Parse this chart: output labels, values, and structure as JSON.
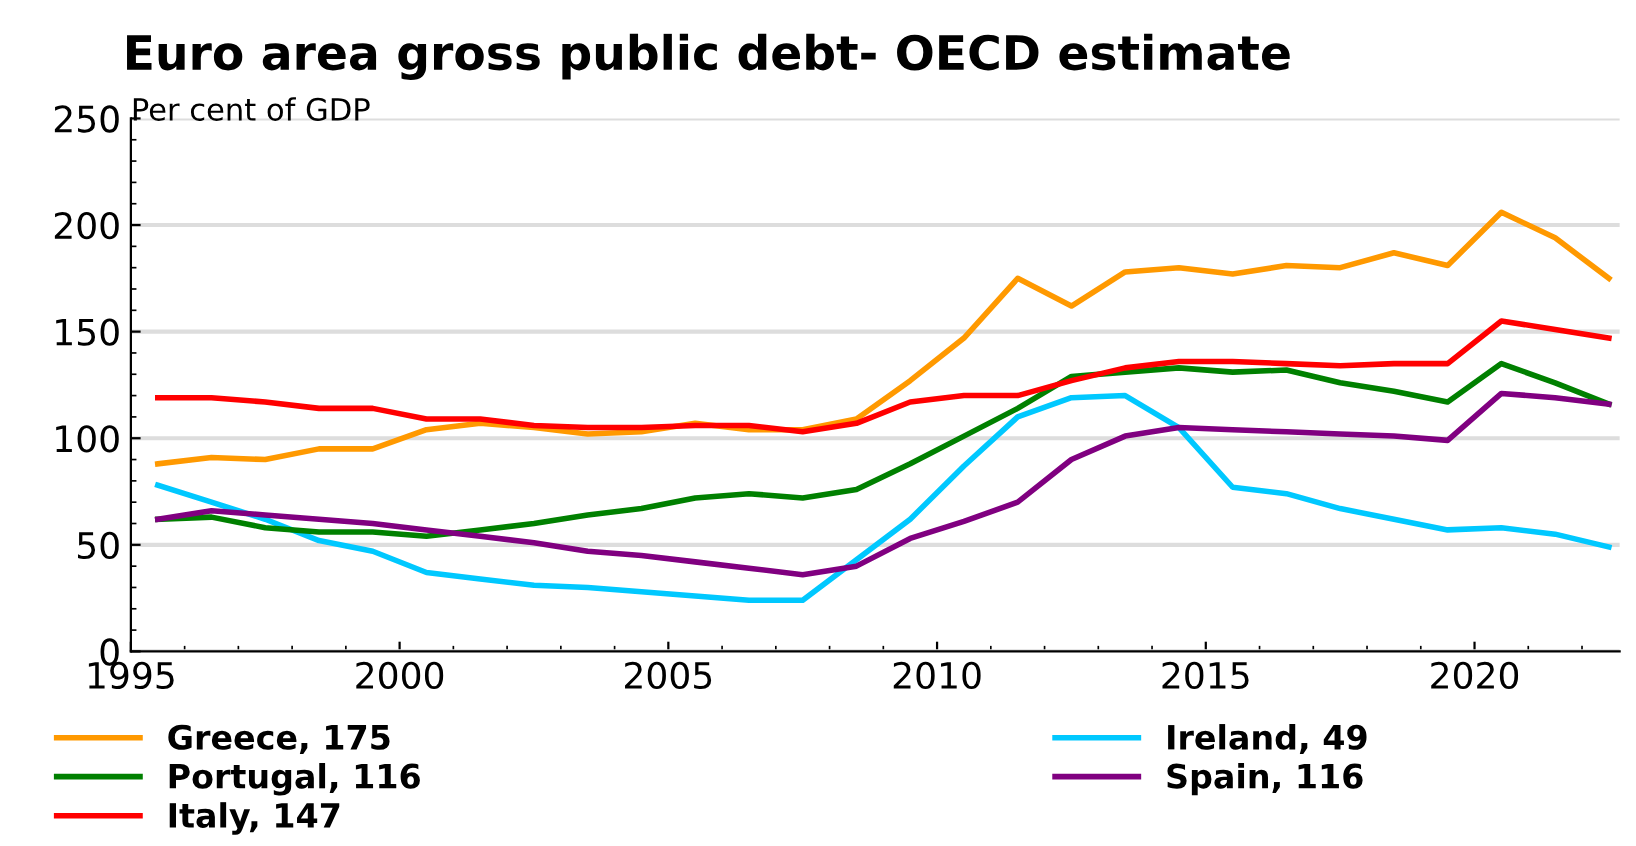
{
  "chart_data": {
    "type": "line",
    "title": "Euro area gross public debt- OECD estimate",
    "subtitle": "Per cent of GDP",
    "x": [
      1995.5,
      1996.5,
      1997.5,
      1998.5,
      1999.5,
      2000.5,
      2001.5,
      2002.5,
      2003.5,
      2004.5,
      2005.5,
      2006.5,
      2007.5,
      2008.5,
      2009.5,
      2010.5,
      2011.5,
      2012.5,
      2013.5,
      2014.5,
      2015.5,
      2016.5,
      2017.5,
      2018.5,
      2019.5,
      2020.5,
      2021.5,
      2022.5
    ],
    "series": [
      {
        "name": "Greece, 175",
        "color": "#ff9900",
        "values": [
          88,
          91,
          90,
          95,
          95,
          104,
          107,
          105,
          102,
          103,
          107,
          104,
          104,
          109,
          127,
          147,
          175,
          162,
          178,
          180,
          177,
          181,
          180,
          187,
          181,
          206,
          194,
          175
        ]
      },
      {
        "name": "Ireland, 49",
        "color": "#00c8ff",
        "values": [
          78,
          70,
          62,
          52,
          47,
          37,
          34,
          31,
          30,
          28,
          26,
          24,
          24,
          43,
          62,
          87,
          110,
          119,
          120,
          105,
          77,
          74,
          67,
          62,
          57,
          58,
          55,
          49
        ]
      },
      {
        "name": "Portugal, 116",
        "color": "#008000",
        "values": [
          62,
          63,
          58,
          56,
          56,
          54,
          57,
          60,
          64,
          67,
          72,
          74,
          72,
          76,
          88,
          101,
          114,
          129,
          131,
          133,
          131,
          132,
          126,
          122,
          117,
          135,
          126,
          116
        ]
      },
      {
        "name": "Spain, 116",
        "color": "#800080",
        "values": [
          62,
          66,
          64,
          62,
          60,
          57,
          54,
          51,
          47,
          45,
          42,
          39,
          36,
          40,
          53,
          61,
          70,
          90,
          101,
          105,
          104,
          103,
          102,
          101,
          99,
          121,
          119,
          116
        ]
      },
      {
        "name": "Italy, 147",
        "color": "#ff0000",
        "values": [
          119,
          119,
          117,
          114,
          114,
          109,
          109,
          106,
          105,
          105,
          106,
          106,
          103,
          107,
          117,
          120,
          120,
          127,
          133,
          136,
          136,
          135,
          134,
          135,
          135,
          155,
          151,
          147
        ]
      }
    ],
    "xlim": [
      1995,
      2022.7
    ],
    "xticks": [
      1995,
      2000,
      2005,
      2010,
      2015,
      2020
    ],
    "ylim": [
      0,
      250
    ],
    "yticks": [
      0,
      50,
      100,
      150,
      200,
      250
    ],
    "grid": "y",
    "legend": "bottom",
    "marker": "none",
    "line_style": "solid"
  }
}
